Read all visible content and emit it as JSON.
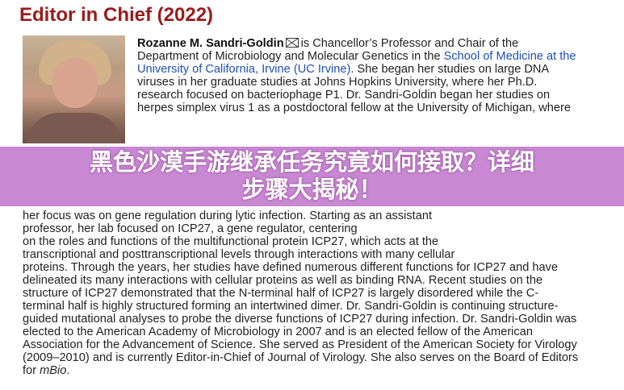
{
  "title": "Editor in Chief (2022)",
  "name": "Rozanne M. Sandri-Goldin",
  "mail_icon": "envelope-icon",
  "lines": [
    "is Chancellor’s Professor and Chair of the",
    "Department of Microbiology and Molecular Genetics in the",
    "School of Medicine at the",
    "University of California, Irvine (UC Irvine)",
    ". She began her studies on large DNA",
    "viruses in her graduate studies at Johns Hopkins University, where her Ph.D.",
    "research focused on bacteriophage P1. Dr. Sandri-Goldin began her studies on",
    "herpes simplex virus 1 as a postdoctoral fellow at the University of Michigan, where",
    "her focus was on gene regulation during lytic infection. Starting as an assistant",
    "professor, her lab focused on ICP27, a gene regulator, centering",
    "on the roles and functions of the multifunctional protein ICP27, which acts at the",
    "transcriptional and posttranscriptional levels through interactions with many cellular",
    "proteins. Through the years, her studies have defined numerous different functions for ICP27 and have",
    "delineated its many interactions with cellular proteins as well as binding RNA. Recent studies on the",
    "structure of ICP27 demonstrated that the N-terminal half of ICP27 is largely disordered while the C-",
    "terminal half is highly structured forming an intertwined dimer. Dr. Sandri-Goldin is continuing structure-",
    "guided mutational analyses to probe the diverse functions of ICP27 during infection. Dr. Sandri-Goldin was",
    "elected to the American Academy of Microbiology in 2007 and is an elected fellow of the American",
    "Association for the Advancement of Science. She served as President of the American Society for Virology",
    "(2009–2010) and is currently Editor-in-Chief of Journal of Virology. She also serves on the Board of Editors",
    "for ",
    "mBio",
    "."
  ],
  "overlay": {
    "line1": "黑色沙漠手游继承任务究竟如何接取？详细",
    "line2": "步骤大揭秘！",
    "color": "#c77fd0"
  }
}
